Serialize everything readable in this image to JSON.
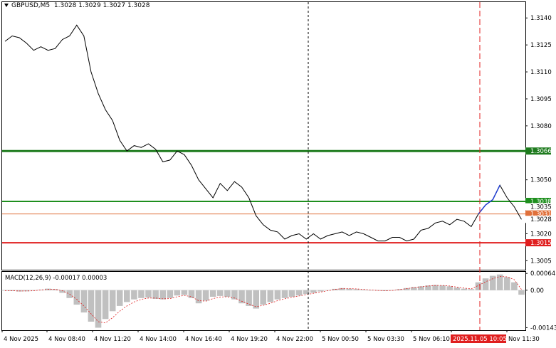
{
  "header": {
    "symbol": "GBPUSD,M5",
    "prices": "1.3028 1.3029 1.3027 1.3028"
  },
  "indicator": {
    "label": "MACD(12,26,9) -0.00017 0.00003"
  },
  "chart_data": [
    {
      "type": "line",
      "ylim": [
        1.3,
        1.31488
      ],
      "y_ticks": [
        "1.3140",
        "1.3125",
        "1.3110",
        "1.3095",
        "1.3080",
        "1.3050",
        "1.3020",
        "1.3005"
      ],
      "y_tick_values": [
        1.314,
        1.3125,
        1.311,
        1.3095,
        1.308,
        1.305,
        1.302,
        1.3005
      ],
      "x_ticks": [
        "4 Nov 2025",
        "4 Nov 08:40",
        "4 Nov 11:20",
        "4 Nov 14:00",
        "4 Nov 16:40",
        "4 Nov 19:20",
        "4 Nov 22:00",
        "5 Nov 00:50",
        "5 Nov 03:30",
        "5 Nov 06:10",
        "2025.11.05 10:05",
        "Nov 11:30"
      ],
      "close": [
        1.3127,
        1.313,
        1.3129,
        1.3126,
        1.3122,
        1.3124,
        1.3122,
        1.3123,
        1.3128,
        1.313,
        1.3136,
        1.313,
        1.311,
        1.3098,
        1.3089,
        1.3083,
        1.3072,
        1.3066,
        1.3069,
        1.3068,
        1.307,
        1.3067,
        1.306,
        1.3061,
        1.3066,
        1.3064,
        1.3058,
        1.305,
        1.3045,
        1.304,
        1.3048,
        1.3044,
        1.3049,
        1.3046,
        1.304,
        1.303,
        1.3025,
        1.3022,
        1.3021,
        1.3017,
        1.3019,
        1.302,
        1.3017,
        1.302,
        1.3017,
        1.3019,
        1.302,
        1.3021,
        1.3019,
        1.3021,
        1.302,
        1.3018,
        1.3016,
        1.3016,
        1.3018,
        1.3018,
        1.3016,
        1.3017,
        1.3022,
        1.3023,
        1.3026,
        1.3027,
        1.3025,
        1.3028,
        1.3027,
        1.3024,
        1.3031,
        1.3036,
        1.3039,
        1.3047,
        1.304,
        1.3035,
        1.3028
      ],
      "macd_histogram": [
        -2e-05,
        -3e-05,
        -5e-05,
        -4e-05,
        -2e-05,
        2e-05,
        6e-05,
        4e-05,
        -0.0001,
        -0.0003,
        -0.00055,
        -0.00085,
        -0.0012,
        -0.00143,
        -0.0011,
        -0.0008,
        -0.0006,
        -0.00045,
        -0.00035,
        -0.0003,
        -0.00028,
        -0.00033,
        -0.00035,
        -0.0003,
        -0.0002,
        -0.00018,
        -0.0003,
        -0.0005,
        -0.0004,
        -0.00025,
        -0.00022,
        -0.00025,
        -0.00035,
        -0.0005,
        -0.0006,
        -0.0007,
        -0.00055,
        -0.00045,
        -0.00035,
        -0.0003,
        -0.00025,
        -0.0002,
        -0.00015,
        -0.0001,
        -5e-05,
        0.0,
        5e-05,
        8e-05,
        6e-05,
        4e-05,
        2e-05,
        0.0,
        -2e-05,
        -3e-05,
        0.0,
        4e-05,
        8e-05,
        0.00012,
        0.00015,
        0.00018,
        0.0002,
        0.00018,
        0.00015,
        0.0001,
        6e-05,
        4e-05,
        0.0003,
        0.00045,
        0.00055,
        0.0006,
        0.0005,
        0.0003,
        -0.00017
      ],
      "macd_signal": [
        -2e-05,
        -2e-05,
        -3e-05,
        -3e-05,
        -2e-05,
        1e-05,
        3e-05,
        3e-05,
        -2e-05,
        -0.00015,
        -0.00035,
        -0.0006,
        -0.0009,
        -0.0012,
        -0.00125,
        -0.00105,
        -0.0008,
        -0.0006,
        -0.00045,
        -0.00035,
        -0.0003,
        -0.0003,
        -0.00033,
        -0.00032,
        -0.00025,
        -0.0002,
        -0.00025,
        -0.0004,
        -0.00042,
        -0.00032,
        -0.00026,
        -0.00025,
        -0.0003,
        -0.00042,
        -0.00053,
        -0.00063,
        -0.00058,
        -0.0005,
        -0.0004,
        -0.00033,
        -0.00027,
        -0.00022,
        -0.00017,
        -0.00012,
        -7e-05,
        -2e-05,
        3e-05,
        6e-05,
        6e-05,
        5e-05,
        3e-05,
        1e-05,
        -1e-05,
        -2e-05,
        -1e-05,
        2e-05,
        6e-05,
        0.0001,
        0.00013,
        0.00016,
        0.00018,
        0.00018,
        0.00016,
        0.00012,
        8e-05,
        5e-05,
        0.00018,
        0.00032,
        0.00044,
        0.00052,
        0.00051,
        0.0004,
        3e-05
      ],
      "macd_ylim": [
        -0.0015,
        0.0007
      ],
      "macd_ticks": [
        "0.00064",
        "0.00",
        "-0.00143"
      ],
      "macd_tick_values": [
        0.00064,
        0.0,
        -0.00143
      ],
      "levels": [
        {
          "label": "1.3066",
          "value": 1.3066,
          "color": "#1e7b1e"
        },
        {
          "label": "1.3038",
          "value": 1.3038,
          "color": "#1e8f1e"
        },
        {
          "label": "1.3035",
          "value": 1.3035,
          "color": "#d0d0d0"
        },
        {
          "label": "1.3031",
          "value": 1.3031,
          "color": "#e0703a"
        },
        {
          "label": "1.3028",
          "value": 1.3028,
          "color": "#bdbdbd"
        },
        {
          "label": "1.3015",
          "value": 1.3015,
          "color": "#e01e1e"
        }
      ]
    }
  ]
}
